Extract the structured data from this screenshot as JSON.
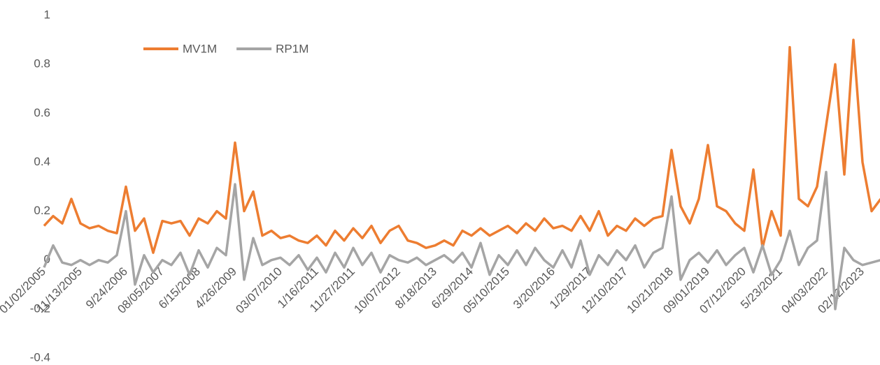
{
  "chart_data": {
    "type": "line",
    "categories": [
      "01/02/2005",
      null,
      null,
      null,
      "11/13/2005",
      null,
      null,
      null,
      null,
      "9/24/2006",
      null,
      null,
      null,
      "08/05/2007",
      null,
      null,
      null,
      "6/15/2008",
      null,
      null,
      null,
      "4/26/2009",
      null,
      null,
      null,
      null,
      "03/07/2010",
      null,
      null,
      null,
      "1/16/2011",
      null,
      null,
      null,
      "11/27/2011",
      null,
      null,
      null,
      null,
      "10/07/2012",
      null,
      null,
      null,
      "8/18/2013",
      null,
      null,
      null,
      "6/29/2014",
      null,
      null,
      null,
      "05/10/2015",
      null,
      null,
      null,
      null,
      "3/20/2016",
      null,
      null,
      null,
      "1/29/2017",
      null,
      null,
      null,
      "12/10/2017",
      null,
      null,
      null,
      null,
      "10/21/2018",
      null,
      null,
      null,
      "09/01/2019",
      null,
      null,
      null,
      "07/12/2020",
      null,
      null,
      null,
      "5/23/2021",
      null,
      null,
      null,
      null,
      "04/03/2022",
      null,
      null,
      null,
      "02/12/2023",
      null,
      null
    ],
    "series": [
      {
        "name": "MV1M",
        "color": "#ed7d31",
        "values": [
          0.14,
          0.18,
          0.15,
          0.25,
          0.15,
          0.13,
          0.14,
          0.12,
          0.11,
          0.3,
          0.12,
          0.17,
          0.03,
          0.16,
          0.15,
          0.16,
          0.1,
          0.17,
          0.15,
          0.2,
          0.17,
          0.48,
          0.2,
          0.28,
          0.1,
          0.12,
          0.09,
          0.1,
          0.08,
          0.07,
          0.1,
          0.06,
          0.12,
          0.08,
          0.13,
          0.09,
          0.14,
          0.07,
          0.12,
          0.14,
          0.08,
          0.07,
          0.05,
          0.06,
          0.08,
          0.06,
          0.12,
          0.1,
          0.13,
          0.1,
          0.12,
          0.14,
          0.11,
          0.15,
          0.12,
          0.17,
          0.13,
          0.14,
          0.12,
          0.18,
          0.12,
          0.2,
          0.1,
          0.14,
          0.12,
          0.17,
          0.14,
          0.17,
          0.18,
          0.45,
          0.22,
          0.15,
          0.25,
          0.47,
          0.22,
          0.2,
          0.15,
          0.12,
          0.37,
          0.05,
          0.2,
          0.1,
          0.87,
          0.25,
          0.22,
          0.3,
          0.55,
          0.8,
          0.35,
          0.9,
          0.4,
          0.2,
          0.25
        ]
      },
      {
        "name": "RP1M",
        "color": "#a5a5a5",
        "values": [
          -0.03,
          0.06,
          -0.01,
          -0.02,
          0.0,
          -0.02,
          0.0,
          -0.01,
          0.02,
          0.2,
          -0.1,
          0.02,
          -0.05,
          0.0,
          -0.02,
          0.03,
          -0.06,
          0.04,
          -0.03,
          0.05,
          0.02,
          0.31,
          -0.08,
          0.09,
          -0.02,
          0.0,
          0.01,
          -0.02,
          0.02,
          -0.04,
          0.01,
          -0.05,
          0.03,
          -0.03,
          0.05,
          -0.02,
          0.03,
          -0.05,
          0.02,
          0.0,
          -0.01,
          0.01,
          -0.02,
          0.0,
          0.02,
          -0.01,
          0.03,
          -0.03,
          0.07,
          -0.06,
          0.02,
          -0.02,
          0.04,
          -0.02,
          0.05,
          0.0,
          -0.03,
          0.04,
          -0.03,
          0.08,
          -0.06,
          0.02,
          -0.02,
          0.04,
          0.0,
          0.06,
          -0.03,
          0.03,
          0.05,
          0.26,
          -0.08,
          0.0,
          0.03,
          -0.01,
          0.04,
          -0.02,
          0.02,
          0.05,
          -0.05,
          0.06,
          -0.06,
          0.0,
          0.12,
          -0.02,
          0.05,
          0.08,
          0.36,
          -0.2,
          0.05,
          0.0,
          -0.02,
          -0.01,
          0.0
        ]
      }
    ],
    "ylim": [
      -0.4,
      1
    ],
    "yticks": [
      -0.4,
      -0.2,
      0,
      0.2,
      0.4,
      0.6,
      0.8,
      1
    ],
    "grid": false,
    "legend": "top-left"
  }
}
